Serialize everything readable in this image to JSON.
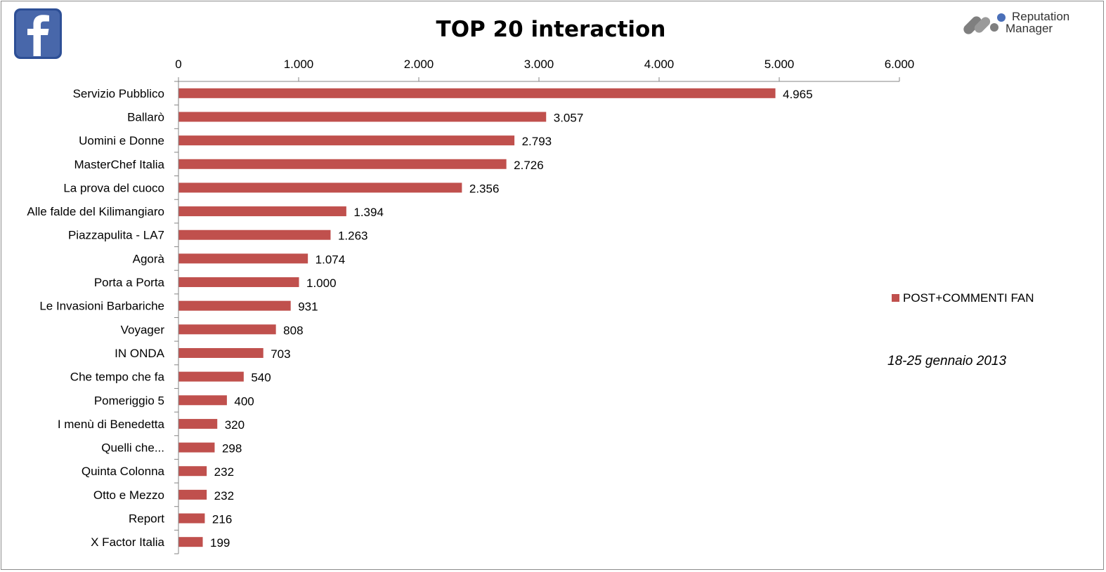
{
  "colors": {
    "bar": "#c0504d",
    "facebook_blue": "#3b5998",
    "axis": "#868686"
  },
  "icons": {
    "facebook": "facebook-logo-icon",
    "brand": "reputation-manager-logo-icon"
  },
  "brand": {
    "line1": "Reputation",
    "line2": "Manager"
  },
  "date_note": "18-25 gennaio 2013",
  "chart_data": {
    "type": "bar",
    "orientation": "horizontal",
    "title": "TOP 20 interaction",
    "xlim": [
      0,
      6000
    ],
    "x_ticks": [
      0,
      1000,
      2000,
      3000,
      4000,
      5000,
      6000
    ],
    "x_tick_labels": [
      "0",
      "1.000",
      "2.000",
      "3.000",
      "4.000",
      "5.000",
      "6.000"
    ],
    "x_axis_position": "top",
    "grid": false,
    "legend_position": "right",
    "categories": [
      "Servizio Pubblico",
      "Ballarò",
      "Uomini e Donne",
      "MasterChef Italia",
      "La prova del cuoco",
      "Alle falde del Kilimangiaro",
      "Piazzapulita - LA7",
      "Agorà",
      "Porta a Porta",
      "Le Invasioni Barbariche",
      "Voyager",
      "IN ONDA",
      "Che tempo che fa",
      "Pomeriggio 5",
      "I menù di Benedetta",
      "Quelli che...",
      "Quinta Colonna",
      "Otto e Mezzo",
      "Report",
      "X Factor Italia"
    ],
    "series": [
      {
        "name": "POST+COMMENTI FAN",
        "values": [
          4965,
          3057,
          2793,
          2726,
          2356,
          1394,
          1263,
          1074,
          1000,
          931,
          808,
          703,
          540,
          400,
          320,
          298,
          232,
          232,
          216,
          199
        ],
        "data_labels": [
          "4.965",
          "3.057",
          "2.793",
          "2.726",
          "2.356",
          "1.394",
          "1.263",
          "1.074",
          "1.000",
          "931",
          "808",
          "703",
          "540",
          "400",
          "320",
          "298",
          "232",
          "232",
          "216",
          "199"
        ]
      }
    ]
  }
}
